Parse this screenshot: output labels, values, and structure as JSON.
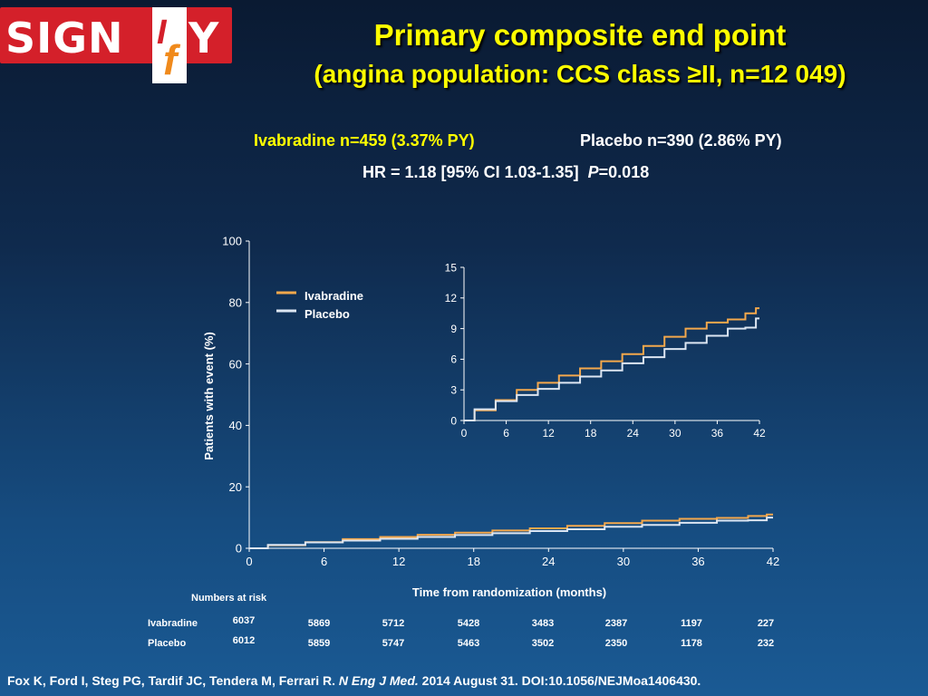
{
  "logo": {
    "text_left": "SIGN",
    "text_right": "Y",
    "mark": "f",
    "mark_small": "I"
  },
  "title": {
    "line1": "Primary composite end point",
    "line2": "(angina population: CCS class ≥II, n=12 049)"
  },
  "stats": {
    "ivabradine": "Ivabradine n=459 (3.37% PY)",
    "placebo": "Placebo n=390 (2.86% PY)",
    "hr": "HR = 1.18 [95% CI 1.03-1.35]",
    "p_italic": "P",
    "p_value": "=0.018"
  },
  "colors": {
    "ivabradine": "#f4a84c",
    "placebo": "#dde6f2",
    "title": "#ffff00"
  },
  "chart_data": {
    "type": "line",
    "xlabel": "Time from randomization (months)",
    "ylabel": "Patients with event (%)",
    "x_ticks": [
      "0",
      "6",
      "12",
      "18",
      "24",
      "30",
      "36",
      "42"
    ],
    "y_ticks": [
      "0",
      "20",
      "40",
      "60",
      "80",
      "100"
    ],
    "xlim": [
      0,
      42
    ],
    "ylim": [
      0,
      100
    ],
    "legend": {
      "position": "top-left",
      "entries": [
        "Ivabradine",
        "Placebo"
      ]
    },
    "x": [
      0,
      3,
      6,
      9,
      12,
      15,
      18,
      21,
      24,
      27,
      30,
      33,
      36,
      39,
      41,
      42
    ],
    "series": [
      {
        "name": "Ivabradine",
        "values": [
          0,
          1.0,
          2.0,
          3.0,
          3.7,
          4.4,
          5.1,
          5.8,
          6.5,
          7.3,
          8.2,
          9.0,
          9.6,
          9.9,
          10.5,
          11.0
        ]
      },
      {
        "name": "Placebo",
        "values": [
          0,
          1.1,
          1.9,
          2.5,
          3.1,
          3.7,
          4.3,
          4.9,
          5.6,
          6.2,
          7.0,
          7.6,
          8.3,
          9.0,
          9.1,
          10.0
        ]
      }
    ],
    "inset": {
      "x_ticks": [
        "0",
        "6",
        "12",
        "18",
        "24",
        "30",
        "36",
        "42"
      ],
      "y_ticks": [
        "0",
        "3",
        "6",
        "9",
        "12",
        "15"
      ],
      "xlim": [
        0,
        42
      ],
      "ylim": [
        0,
        15
      ]
    }
  },
  "risk_table": {
    "header": "Numbers at risk",
    "rows": [
      {
        "label": "Ivabradine",
        "values": [
          "6037",
          "5869",
          "5712",
          "5428",
          "3483",
          "2387",
          "1197",
          "227"
        ]
      },
      {
        "label": "Placebo",
        "values": [
          "6012",
          "5859",
          "5747",
          "5463",
          "3502",
          "2350",
          "1178",
          "232"
        ]
      }
    ]
  },
  "citation": {
    "authors": "Fox K, Ford I, Steg PG, Tardif JC, Tendera M, Ferrari R.",
    "journal": "N Eng J Med.",
    "rest": "2014 August 31. DOI:10.1056/NEJMoa1406430."
  }
}
